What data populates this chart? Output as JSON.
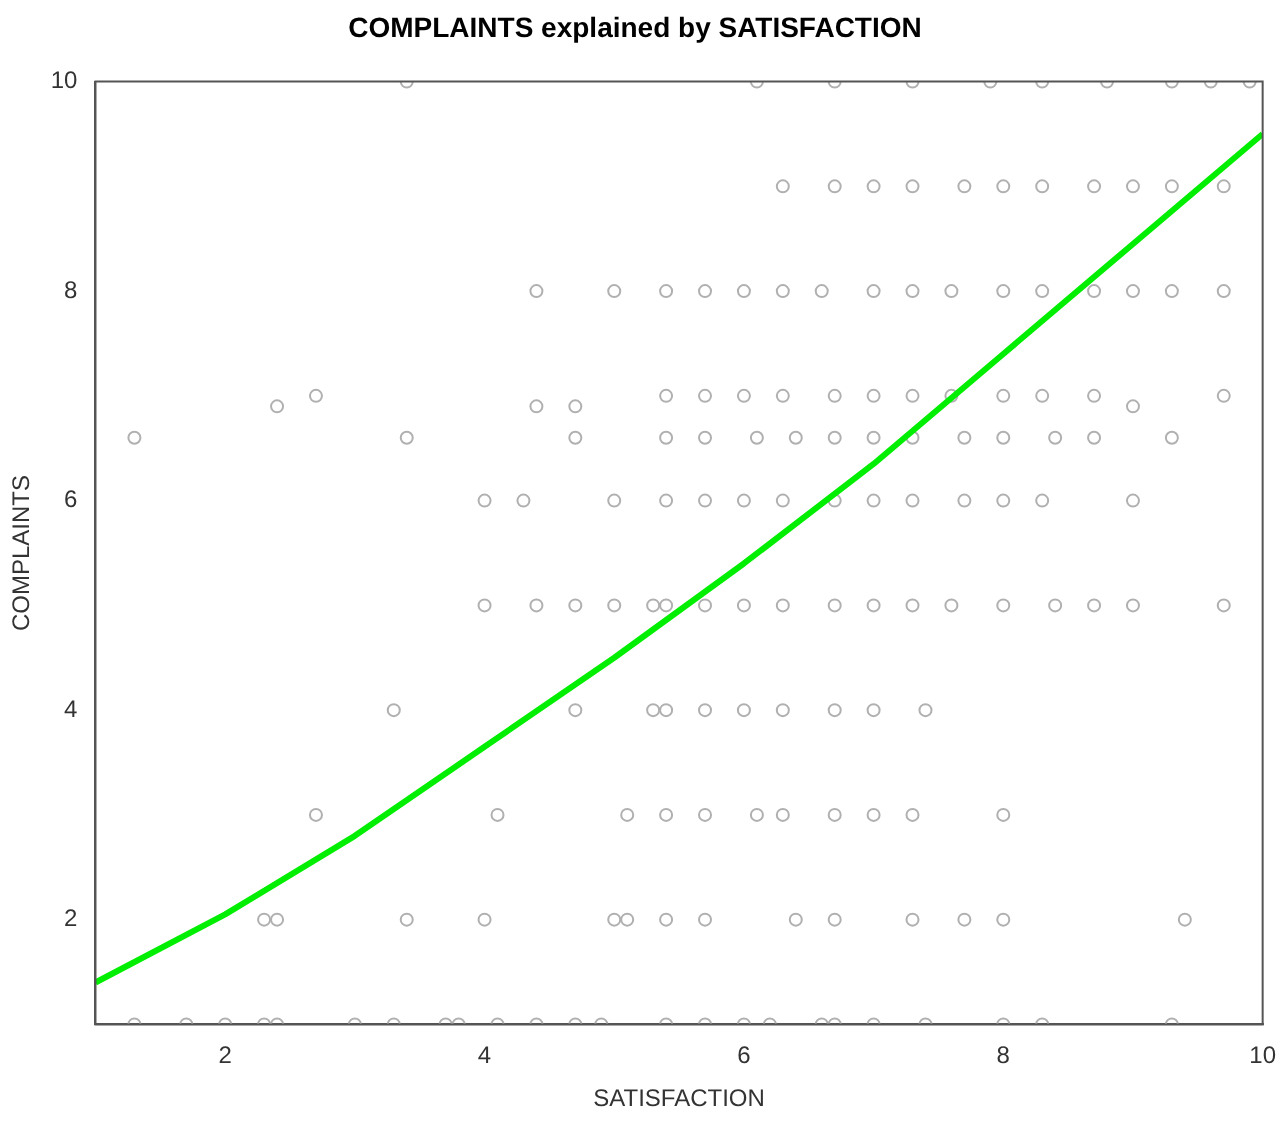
{
  "chart_data": {
    "type": "scatter",
    "title": "COMPLAINTS explained by SATISFACTION",
    "xlabel": "SATISFACTION",
    "ylabel": "COMPLAINTS",
    "xlim": [
      1,
      10
    ],
    "ylim": [
      1,
      10
    ],
    "xticks": [
      2,
      4,
      6,
      8,
      10
    ],
    "yticks": [
      2,
      4,
      6,
      8,
      10
    ],
    "series": [
      {
        "marker": "circle",
        "color": "#b0b0b0",
        "x": [
          3.4,
          6.1,
          6.7,
          7.3,
          7.9,
          8.3,
          8.8,
          9.3,
          9.6,
          9.9,
          6.3,
          6.7,
          7.0,
          7.3,
          7.7,
          8.0,
          8.3,
          8.7,
          9.0,
          9.3,
          9.7,
          4.4,
          5.0,
          5.4,
          5.7,
          6.0,
          6.3,
          6.6,
          7.0,
          7.3,
          7.6,
          8.0,
          8.3,
          8.7,
          9.0,
          9.3,
          9.7,
          2.4,
          2.7,
          4.4,
          4.7,
          5.4,
          5.7,
          6.0,
          6.3,
          6.7,
          7.0,
          7.3,
          7.6,
          8.0,
          8.3,
          8.7,
          9.0,
          9.7,
          1.3,
          3.4,
          4.7,
          5.4,
          5.7,
          6.1,
          6.4,
          6.7,
          7.0,
          7.3,
          7.7,
          8.0,
          8.4,
          8.7,
          9.3,
          4.0,
          4.3,
          5.0,
          5.4,
          5.7,
          6.0,
          6.3,
          6.7,
          7.0,
          7.3,
          7.7,
          8.0,
          8.3,
          9.0,
          4.0,
          4.4,
          4.7,
          5.0,
          5.3,
          5.4,
          5.7,
          6.0,
          6.3,
          6.7,
          7.0,
          7.3,
          7.6,
          8.0,
          8.4,
          8.7,
          9.0,
          9.7,
          3.3,
          4.7,
          5.3,
          5.4,
          5.7,
          6.0,
          6.3,
          6.7,
          7.0,
          7.4,
          2.7,
          4.1,
          5.1,
          5.4,
          5.7,
          6.1,
          6.3,
          6.7,
          7.0,
          7.3,
          8.0,
          2.3,
          2.4,
          3.4,
          4.0,
          5.0,
          5.1,
          5.4,
          5.7,
          6.4,
          6.7,
          7.3,
          7.7,
          8.0,
          9.4,
          1.3,
          1.7,
          2.0,
          2.3,
          2.4,
          3.0,
          3.3,
          3.7,
          3.8,
          4.1,
          4.4,
          4.7,
          4.9,
          5.4,
          5.7,
          6.0,
          6.2,
          6.6,
          6.7,
          7.0,
          7.4,
          8.0,
          8.3,
          9.3
        ],
        "values": [
          10,
          10,
          10,
          10,
          10,
          10,
          10,
          10,
          10,
          10,
          9,
          9,
          9,
          9,
          9,
          9,
          9,
          9,
          9,
          9,
          9,
          8,
          8,
          8,
          8,
          8,
          8,
          8,
          8,
          8,
          8,
          8,
          8,
          8,
          8,
          8,
          8,
          6.9,
          7,
          6.9,
          6.9,
          7,
          7,
          7,
          7,
          7,
          7,
          7,
          7,
          7,
          7,
          7,
          6.9,
          7,
          6.6,
          6.6,
          6.6,
          6.6,
          6.6,
          6.6,
          6.6,
          6.6,
          6.6,
          6.6,
          6.6,
          6.6,
          6.6,
          6.6,
          6.6,
          6,
          6,
          6,
          6,
          6,
          6,
          6,
          6,
          6,
          6,
          6,
          6,
          6,
          6,
          5,
          5,
          5,
          5,
          5,
          5,
          5,
          5,
          5,
          5,
          5,
          5,
          5,
          5,
          5,
          5,
          5,
          5,
          4,
          4,
          4,
          4,
          4,
          4,
          4,
          4,
          4,
          4,
          3,
          3,
          3,
          3,
          3,
          3,
          3,
          3,
          3,
          3,
          3,
          2,
          2,
          2,
          2,
          2,
          2,
          2,
          2,
          2,
          2,
          2,
          2,
          2,
          2,
          1,
          1,
          1,
          1,
          1,
          1,
          1,
          1,
          1,
          1,
          1,
          1,
          1,
          1,
          1,
          1,
          1,
          1,
          1,
          1,
          1,
          1,
          1,
          1
        ]
      },
      {
        "type": "line",
        "color": "#00ee00",
        "x": [
          1,
          2,
          3,
          4,
          5,
          6,
          7,
          8,
          9,
          10
        ],
        "values": [
          1.4,
          2.05,
          2.8,
          3.65,
          4.5,
          5.4,
          6.35,
          7.4,
          8.45,
          9.5
        ]
      }
    ]
  }
}
